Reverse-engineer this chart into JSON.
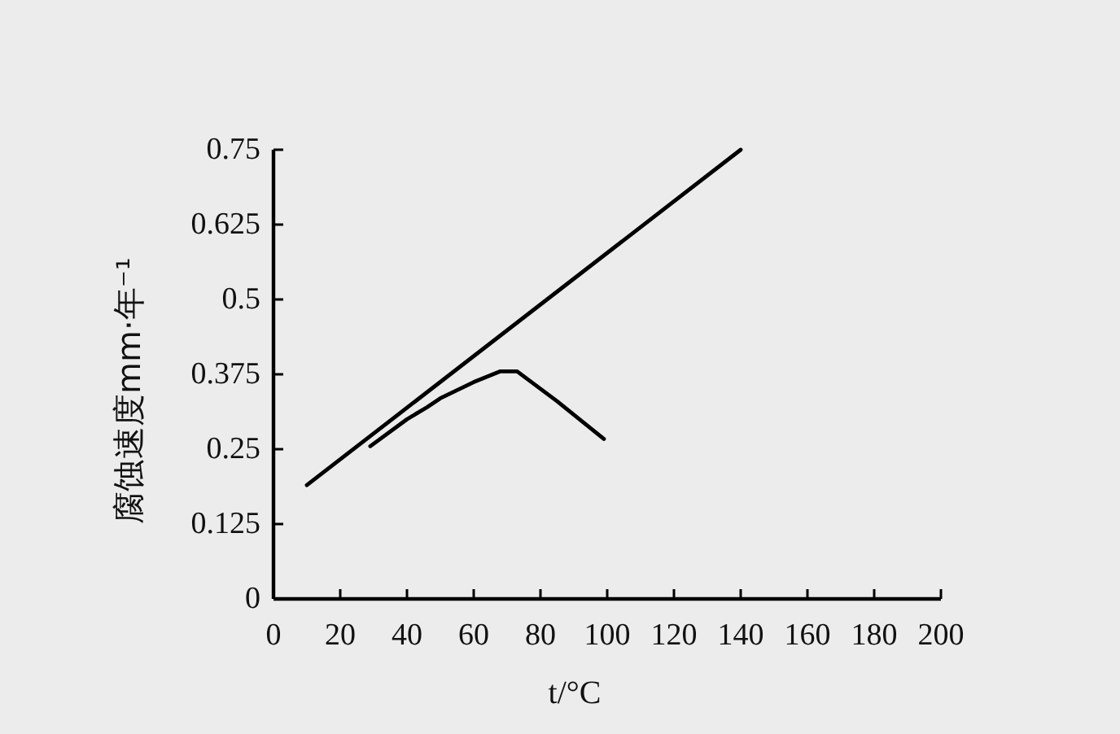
{
  "chart_data": {
    "type": "line",
    "xlabel": "t/°C",
    "ylabel": "腐蚀速度mm·年⁻¹",
    "xlim": [
      0,
      200
    ],
    "xticks": [
      0,
      20,
      40,
      60,
      80,
      100,
      120,
      140,
      160,
      180,
      200
    ],
    "ylim": [
      0,
      0.75
    ],
    "yticks": [
      0,
      0.125,
      0.25,
      0.375,
      0.5,
      0.625,
      0.75
    ],
    "series": [
      {
        "color": "#000000",
        "x": [
          10,
          140
        ],
        "values": [
          0.19,
          0.75
        ]
      },
      {
        "color": "#000000",
        "x": [
          29,
          40,
          46,
          50,
          60,
          68,
          73,
          85,
          99
        ],
        "values": [
          0.255,
          0.3,
          0.32,
          0.335,
          0.362,
          0.38,
          0.38,
          0.33,
          0.267
        ]
      }
    ]
  }
}
